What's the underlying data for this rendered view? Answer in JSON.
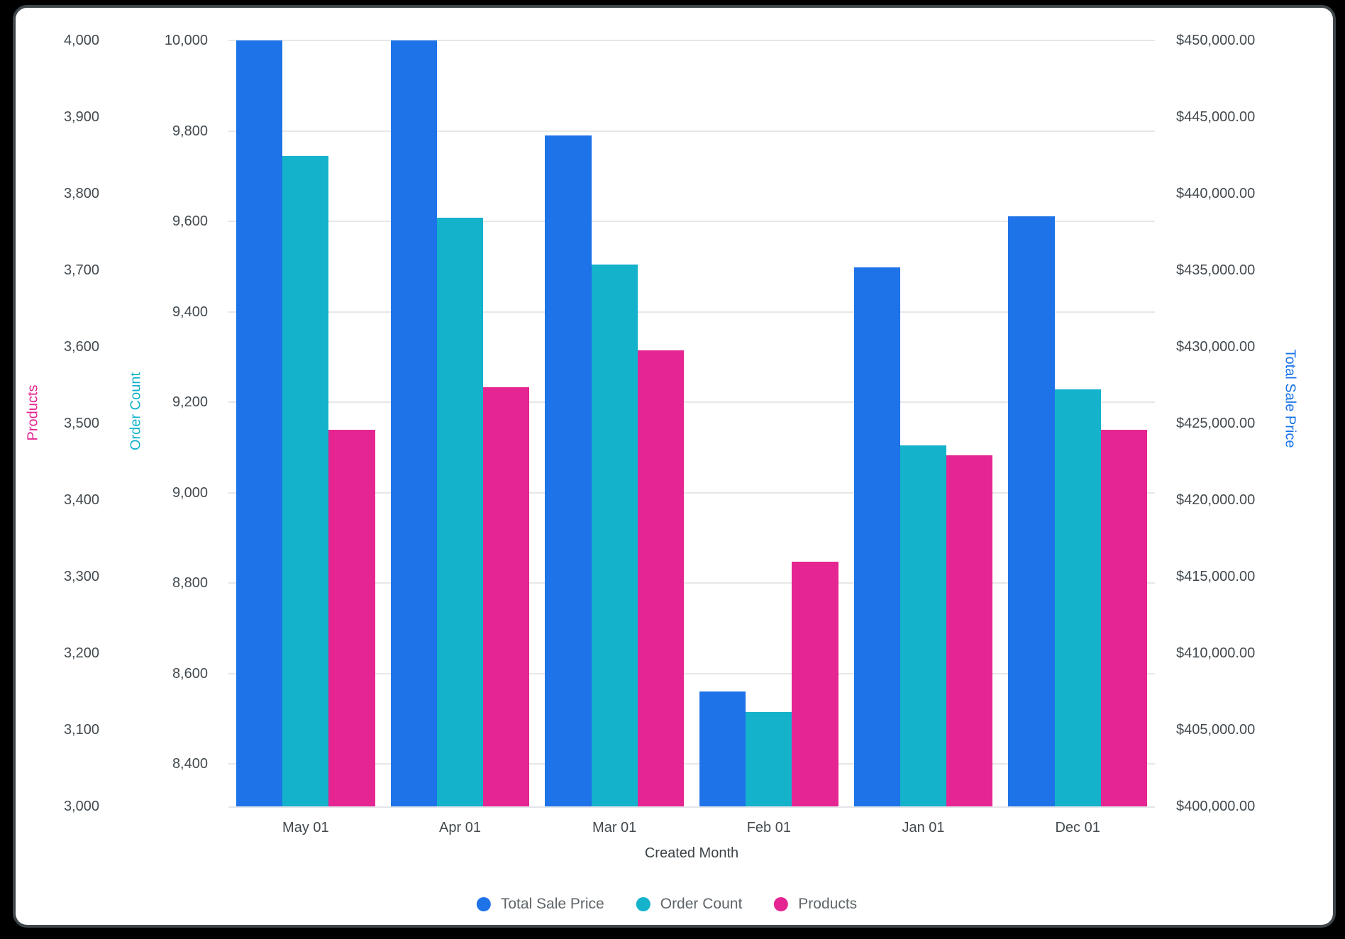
{
  "chart_data": {
    "type": "bar",
    "title": "",
    "categories": [
      "May 01",
      "Apr 01",
      "Mar 01",
      "Feb 01",
      "Jan 01",
      "Dec 01"
    ],
    "series": [
      {
        "name": "Total Sale Price",
        "axis": "sales",
        "color": "#1E73E8",
        "values": [
          450000,
          450000,
          443800,
          407500,
          435200,
          438500
        ]
      },
      {
        "name": "Order Count",
        "axis": "orders",
        "color": "#14B2CB",
        "values": [
          9745,
          9608,
          9505,
          8515,
          9105,
          9228
        ]
      },
      {
        "name": "Products",
        "axis": "products",
        "color": "#E42592",
        "values": [
          3492,
          3547,
          3595,
          3319,
          3458,
          3492
        ]
      }
    ],
    "axes": {
      "products": {
        "title": "Products",
        "side": "left-outer",
        "color": "#E42592",
        "min": 3000,
        "max": 4000,
        "tick_values": [
          4000,
          3900,
          3800,
          3700,
          3600,
          3500,
          3400,
          3300,
          3200,
          3100,
          3000
        ],
        "tick_labels": [
          "4,000",
          "3,900",
          "3,800",
          "3,700",
          "3,600",
          "3,500",
          "3,400",
          "3,300",
          "3,200",
          "3,100",
          "3,000"
        ]
      },
      "orders": {
        "title": "Order Count",
        "side": "left-inner",
        "color": "#14B2CB",
        "min": 8306,
        "max": 10000,
        "tick_values": [
          10000,
          9800,
          9600,
          9400,
          9200,
          9000,
          8800,
          8600,
          8400
        ],
        "tick_labels": [
          "10,000",
          "9,800",
          "9,600",
          "9,400",
          "9,200",
          "9,000",
          "8,800",
          "8,600",
          "8,400"
        ]
      },
      "sales": {
        "title": "Total Sale Price",
        "side": "right",
        "color": "#1A73E8",
        "min": 400000,
        "max": 450000,
        "tick_values": [
          450000,
          445000,
          440000,
          435000,
          430000,
          425000,
          420000,
          415000,
          410000,
          405000,
          400000
        ],
        "tick_labels": [
          "$450,000.00",
          "$445,000.00",
          "$440,000.00",
          "$435,000.00",
          "$430,000.00",
          "$425,000.00",
          "$420,000.00",
          "$415,000.00",
          "$410,000.00",
          "$405,000.00",
          "$400,000.00"
        ]
      }
    },
    "xlabel": "Created Month",
    "legend": [
      "Total Sale Price",
      "Order Count",
      "Products"
    ],
    "grid": "horizontal gridlines on Order Count ticks",
    "legend_position": "bottom-center"
  }
}
